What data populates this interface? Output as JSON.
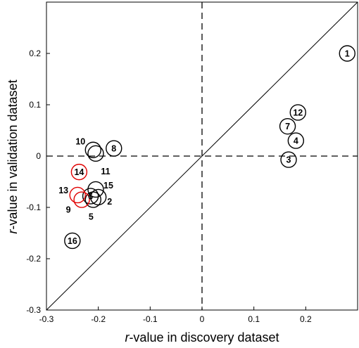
{
  "chart_data": {
    "type": "scatter",
    "xlabel_italic": "r",
    "xlabel_rest": "-value in discovery dataset",
    "ylabel_italic": "r",
    "ylabel_rest": "-value in validation dataset",
    "xlim": [
      -0.3,
      0.3
    ],
    "ylim": [
      -0.3,
      0.3
    ],
    "x_ticks": [
      -0.3,
      -0.2,
      -0.1,
      0,
      0.1,
      0.2
    ],
    "x_tick_labels": [
      "-0.3",
      "-0.2",
      "-0.1",
      "0",
      "0.1",
      "0.2"
    ],
    "y_ticks": [
      -0.3,
      -0.2,
      -0.1,
      0,
      0.1,
      0.2
    ],
    "y_tick_labels": [
      "-0.3",
      "-0.2",
      "-0.1",
      "0",
      "0.1",
      "0.2"
    ],
    "grid": false,
    "reference_lines": [
      "x = 0 (dashed)",
      "y = 0 (dashed)",
      "y = x (solid)"
    ],
    "highlight_color": "#e00000",
    "default_color": "#000000",
    "points": [
      {
        "label": "1",
        "x": 0.28,
        "y": 0.2,
        "label_on_point": true,
        "highlight": false
      },
      {
        "label": "2",
        "x": -0.2,
        "y": -0.08,
        "label_on_point": false,
        "label_dx": 16,
        "label_dy": 6,
        "highlight": false
      },
      {
        "label": "3",
        "x": 0.167,
        "y": -0.007,
        "label_on_point": true,
        "highlight": false
      },
      {
        "label": "4",
        "x": 0.181,
        "y": 0.03,
        "label_on_point": true,
        "highlight": false
      },
      {
        "label": "5",
        "x": -0.21,
        "y": -0.085,
        "label_on_point": false,
        "label_dx": -3,
        "label_dy": 24,
        "highlight": false
      },
      {
        "label": "6",
        "x": -0.215,
        "y": -0.078,
        "label_on_point": true,
        "highlight": false
      },
      {
        "label": "7",
        "x": 0.165,
        "y": 0.058,
        "label_on_point": true,
        "highlight": false
      },
      {
        "label": "8",
        "x": -0.17,
        "y": 0.015,
        "label_on_point": true,
        "highlight": false
      },
      {
        "label": "9",
        "x": -0.232,
        "y": -0.085,
        "label_on_point": false,
        "label_dx": -19,
        "label_dy": 14,
        "highlight": true
      },
      {
        "label": "10",
        "x": -0.21,
        "y": 0.012,
        "label_on_point": false,
        "label_dx": -18,
        "label_dy": -12,
        "highlight": false
      },
      {
        "label": "11",
        "x": -0.205,
        "y": 0.005,
        "label_on_point": false,
        "label_dx": 14,
        "label_dy": 25,
        "highlight": false
      },
      {
        "label": "12",
        "x": 0.185,
        "y": 0.085,
        "label_on_point": true,
        "highlight": false
      },
      {
        "label": "13",
        "x": -0.24,
        "y": -0.076,
        "label_on_point": false,
        "label_dx": -20,
        "label_dy": -7,
        "highlight": true
      },
      {
        "label": "14",
        "x": -0.237,
        "y": -0.031,
        "label_on_point": true,
        "highlight": true
      },
      {
        "label": "15",
        "x": -0.205,
        "y": -0.065,
        "label_on_point": false,
        "label_dx": 18,
        "label_dy": -6,
        "highlight": false
      },
      {
        "label": "16",
        "x": -0.25,
        "y": -0.165,
        "label_on_point": true,
        "highlight": false
      }
    ]
  }
}
